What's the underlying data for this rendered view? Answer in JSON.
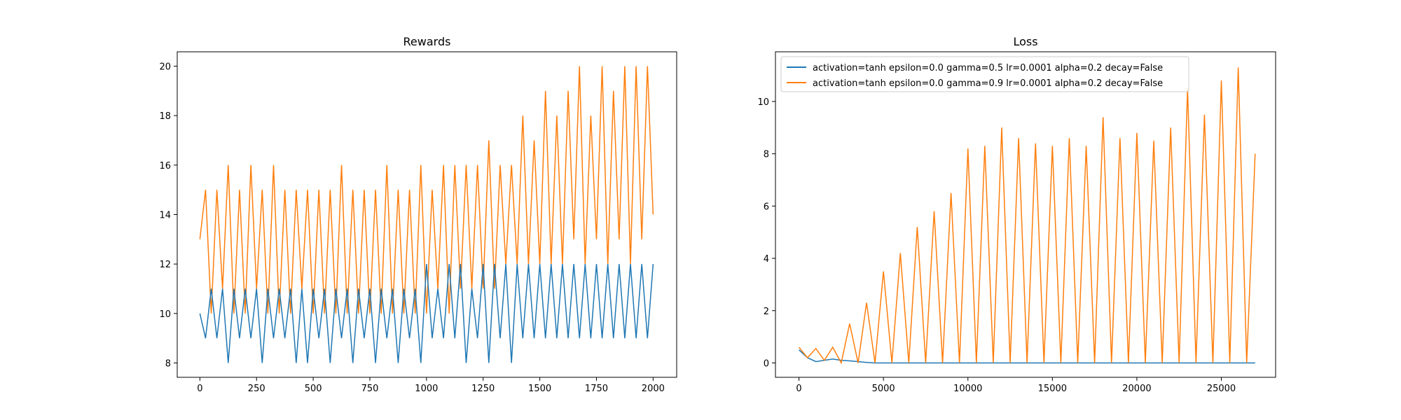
{
  "chart_data": [
    {
      "type": "line",
      "title": "Rewards",
      "x": [
        0,
        25,
        50,
        75,
        100,
        125,
        150,
        175,
        200,
        225,
        250,
        275,
        300,
        325,
        350,
        375,
        400,
        425,
        450,
        475,
        500,
        525,
        550,
        575,
        600,
        625,
        650,
        675,
        700,
        725,
        750,
        775,
        800,
        825,
        850,
        875,
        900,
        925,
        950,
        975,
        1000,
        1025,
        1050,
        1075,
        1100,
        1125,
        1150,
        1175,
        1200,
        1225,
        1250,
        1275,
        1300,
        1325,
        1350,
        1375,
        1400,
        1425,
        1450,
        1475,
        1500,
        1525,
        1550,
        1575,
        1600,
        1625,
        1650,
        1675,
        1700,
        1725,
        1750,
        1775,
        1800,
        1825,
        1850,
        1875,
        1900,
        1925,
        1950,
        1975,
        2000
      ],
      "series": [
        {
          "color": "#ff7f0e",
          "values": [
            13,
            15,
            10,
            15,
            11,
            16,
            10,
            15,
            10,
            16,
            11,
            15,
            10,
            16,
            10,
            15,
            10,
            15,
            11,
            15,
            10,
            15,
            10,
            15,
            10,
            16,
            10,
            15,
            10,
            15,
            10,
            15,
            10,
            16,
            10,
            15,
            10,
            15,
            10,
            16,
            10,
            15,
            11,
            16,
            10,
            16,
            11,
            16,
            11,
            16,
            11,
            17,
            11,
            16,
            12,
            16,
            12,
            18,
            12,
            17,
            12,
            19,
            12,
            18,
            12,
            19,
            13,
            20,
            12,
            18,
            13,
            20,
            12,
            19,
            13,
            20,
            12,
            20,
            13,
            20,
            14
          ]
        },
        {
          "color": "#1f77b4",
          "values": [
            10,
            9,
            11,
            9,
            11,
            8,
            11,
            9,
            11,
            9,
            11,
            8,
            11,
            9,
            11,
            9,
            11,
            8,
            11,
            8,
            11,
            9,
            11,
            8,
            11,
            9,
            11,
            8,
            11,
            9,
            11,
            8,
            11,
            9,
            11,
            8,
            11,
            9,
            11,
            8,
            12,
            9,
            11,
            9,
            12,
            9,
            12,
            8,
            11,
            9,
            12,
            8,
            12,
            9,
            12,
            8,
            12,
            9,
            12,
            9,
            12,
            9,
            12,
            9,
            12,
            9,
            12,
            9,
            12,
            9,
            12,
            9,
            12,
            9,
            12,
            9,
            12,
            9,
            12,
            9,
            12
          ]
        }
      ],
      "xlim": [
        -100,
        2104
      ],
      "ylim": [
        7.42,
        20.58
      ],
      "xticks": [
        0,
        250,
        500,
        750,
        1000,
        1250,
        1500,
        1750,
        2000
      ],
      "yticks": [
        8,
        10,
        12,
        14,
        16,
        18,
        20
      ]
    },
    {
      "type": "line",
      "title": "Loss",
      "x": [
        0,
        500,
        1000,
        1500,
        2000,
        2500,
        3000,
        3500,
        4000,
        4500,
        5000,
        5500,
        6000,
        6500,
        7000,
        7500,
        8000,
        8500,
        9000,
        9500,
        10000,
        10500,
        11000,
        11500,
        12000,
        12500,
        13000,
        13500,
        14000,
        14500,
        15000,
        15500,
        16000,
        16500,
        17000,
        17500,
        18000,
        18500,
        19000,
        19500,
        20000,
        20500,
        21000,
        21500,
        22000,
        22500,
        23000,
        23500,
        24000,
        24500,
        25000,
        25500,
        26000,
        26500,
        27000
      ],
      "series": [
        {
          "name": "activation=tanh epsilon=0.0 gamma=0.5 lr=0.0001 alpha=0.2 decay=False",
          "color": "#1f77b4",
          "values": [
            0.5,
            0.2,
            0.05,
            0.1,
            0.15,
            0.1,
            0.08,
            0.05,
            0.02,
            0,
            0,
            0,
            0,
            0,
            0,
            0,
            0,
            0,
            0,
            0,
            0,
            0,
            0,
            0,
            0,
            0,
            0,
            0,
            0,
            0,
            0,
            0,
            0,
            0,
            0,
            0,
            0,
            0,
            0,
            0,
            0,
            0,
            0,
            0,
            0,
            0,
            0,
            0,
            0,
            0,
            0,
            0,
            0,
            0,
            0
          ]
        },
        {
          "name": "activation=tanh epsilon=0.0 gamma=0.9 lr=0.0001 alpha=0.2 decay=False",
          "color": "#ff7f0e",
          "values": [
            0.6,
            0.2,
            0.55,
            0.1,
            0.6,
            0,
            1.5,
            0,
            2.3,
            0,
            3.5,
            0,
            4.2,
            0,
            5.2,
            0,
            5.8,
            0,
            6.5,
            0,
            8.2,
            0,
            8.3,
            0,
            9.0,
            0,
            8.6,
            0,
            8.4,
            0,
            8.3,
            0,
            8.6,
            0,
            8.3,
            0,
            9.4,
            0,
            8.6,
            0,
            8.8,
            0,
            8.5,
            0,
            9.0,
            0,
            10.5,
            0,
            9.5,
            0,
            10.8,
            0,
            11.3,
            0,
            8.0
          ]
        }
      ],
      "xlim": [
        -1392,
        28212
      ],
      "ylim": [
        -0.55,
        11.9
      ],
      "xticks": [
        0,
        5000,
        10000,
        15000,
        20000,
        25000
      ],
      "yticks": [
        0,
        2,
        4,
        6,
        8,
        10
      ],
      "legend": "upper left"
    }
  ]
}
